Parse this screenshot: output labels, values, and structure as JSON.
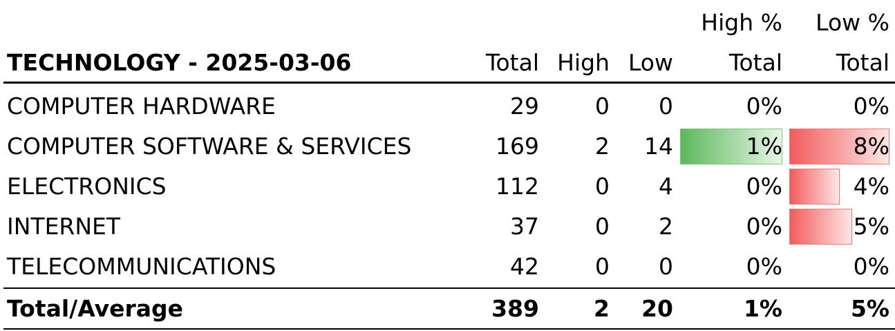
{
  "table": {
    "title": "TECHNOLOGY - 2025-03-06",
    "header_top": [
      "High %",
      "Low %"
    ],
    "header": [
      "Total",
      "High",
      "Low",
      "Total",
      "Total"
    ],
    "rows": [
      [
        "COMPUTER HARDWARE",
        "29",
        "0",
        "0",
        "0%",
        "0%"
      ],
      [
        "COMPUTER SOFTWARE & SERVICES",
        "169",
        "2",
        "14",
        "1%",
        "8%"
      ],
      [
        "ELECTRONICS",
        "112",
        "0",
        "4",
        "0%",
        "4%"
      ],
      [
        "INTERNET",
        "37",
        "0",
        "2",
        "0%",
        "5%"
      ],
      [
        "TELECOMMUNICATIONS",
        "42",
        "0",
        "0",
        "0%",
        "0%"
      ]
    ],
    "total": [
      "Total/Average",
      "389",
      "2",
      "20",
      "1%",
      "5%"
    ]
  }
}
